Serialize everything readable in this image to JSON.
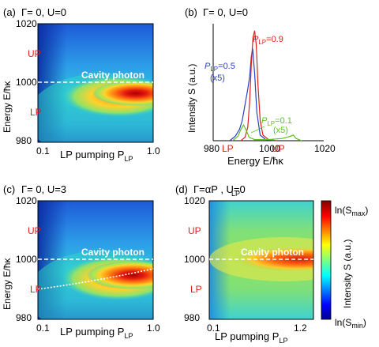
{
  "chart_data": [
    {
      "type": "heatmap",
      "panel_label": "(a)",
      "title": "Γ= 0,  U=0",
      "xlabel": "LP pumping P",
      "xlabel_sub": "LP",
      "ylabel": "Energy   E/ħκ",
      "x_ticks": [
        "0.1",
        "1.0"
      ],
      "xlim": [
        0.1,
        1.0
      ],
      "y_ticks": [
        "980",
        "1000",
        "1020"
      ],
      "ylim": [
        980,
        1020
      ],
      "mode_labels": [
        {
          "text": "UP",
          "y": 1009
        },
        {
          "text": "LP",
          "y": 991
        }
      ],
      "cavity_label": "Cavity photon",
      "cavity_energy": 1000
    },
    {
      "type": "line",
      "panel_label": "(b)",
      "title": "Γ= 0,  U=0",
      "xlabel": "Energy   E/ħκ",
      "ylabel": "Intensity  S (a.u.)",
      "x_ticks": [
        "980",
        "1000",
        "1020"
      ],
      "xlim": [
        980,
        1020
      ],
      "category_ticks": [
        {
          "text": "LP",
          "x": 991
        },
        {
          "text": "UP",
          "x": 1009
        }
      ],
      "series": [
        {
          "name": "P_LP=0.5 (x5)",
          "label": "P",
          "sub": "LP",
          "value_text": "=0.5",
          "scale_text": "(x5)",
          "color": "#2b3fc4",
          "x": [
            986,
            988,
            989.5,
            990.5,
            991.5,
            992.5,
            993.2,
            993.8,
            994.3,
            995,
            995.8,
            997,
            999,
            1002
          ],
          "y": [
            0,
            0.04,
            0.1,
            0.18,
            0.32,
            0.46,
            0.57,
            0.75,
            0.82,
            0.6,
            0.25,
            0.05,
            0.01,
            0
          ]
        },
        {
          "name": "P_LP=0.9",
          "label": "P",
          "sub": "LP",
          "value_text": "=0.9",
          "scale_text": "",
          "color": "#e0201c",
          "x": [
            990,
            991.5,
            992.5,
            993.2,
            993.8,
            994.4,
            995,
            995.6,
            996.2,
            997,
            998,
            1000,
            1003
          ],
          "y": [
            0,
            0.03,
            0.12,
            0.35,
            0.68,
            0.92,
            0.98,
            0.85,
            0.5,
            0.18,
            0.05,
            0.01,
            0
          ]
        },
        {
          "name": "P_LP=0.1 (x5)",
          "label": "P",
          "sub": "LP",
          "value_text": "=0.1",
          "scale_text": "(x5)",
          "color": "#5cc21e",
          "x": [
            987,
            989,
            990,
            991,
            992,
            993,
            995,
            1000,
            1005,
            1008,
            1009,
            1010,
            1012
          ],
          "y": [
            0,
            0.04,
            0.1,
            0.14,
            0.09,
            0.03,
            0.01,
            0.01,
            0.02,
            0.04,
            0.05,
            0.02,
            0
          ]
        }
      ]
    },
    {
      "type": "heatmap",
      "panel_label": "(c)",
      "title": "Γ= 0,  U=3",
      "xlabel": "LP pumping P",
      "xlabel_sub": "LP",
      "ylabel": "Energy   E/ħκ",
      "x_ticks": [
        "0.1",
        "1.0"
      ],
      "xlim": [
        0.1,
        1.0
      ],
      "y_ticks": [
        "980",
        "1000",
        "1020"
      ],
      "ylim": [
        980,
        1020
      ],
      "mode_labels": [
        {
          "text": "UP",
          "y": 1009
        },
        {
          "text": "LP",
          "y": 991
        }
      ],
      "cavity_label": "Cavity photon",
      "cavity_energy": 1000
    },
    {
      "type": "heatmap",
      "panel_label": "(d)",
      "title": "Γ=αP   ,  U=0",
      "title_sub": "LP",
      "xlabel": "LP pumping P",
      "xlabel_sub": "LP",
      "ylabel": "",
      "x_ticks": [
        "0.1",
        "1.2"
      ],
      "xlim": [
        0.1,
        1.2
      ],
      "y_ticks": [
        "980",
        "1000",
        "1020"
      ],
      "ylim": [
        980,
        1020
      ],
      "mode_labels": [
        {
          "text": "UP",
          "y": 1009
        },
        {
          "text": "LP",
          "y": 991
        }
      ],
      "cavity_label": "Cavity photon",
      "cavity_energy": 1000,
      "colorbar": {
        "max_label": "ln(S",
        "max_sub": "max",
        "min_label": "ln(S",
        "min_sub": "min",
        "title": "Intensity  S (a.u.)"
      }
    }
  ]
}
